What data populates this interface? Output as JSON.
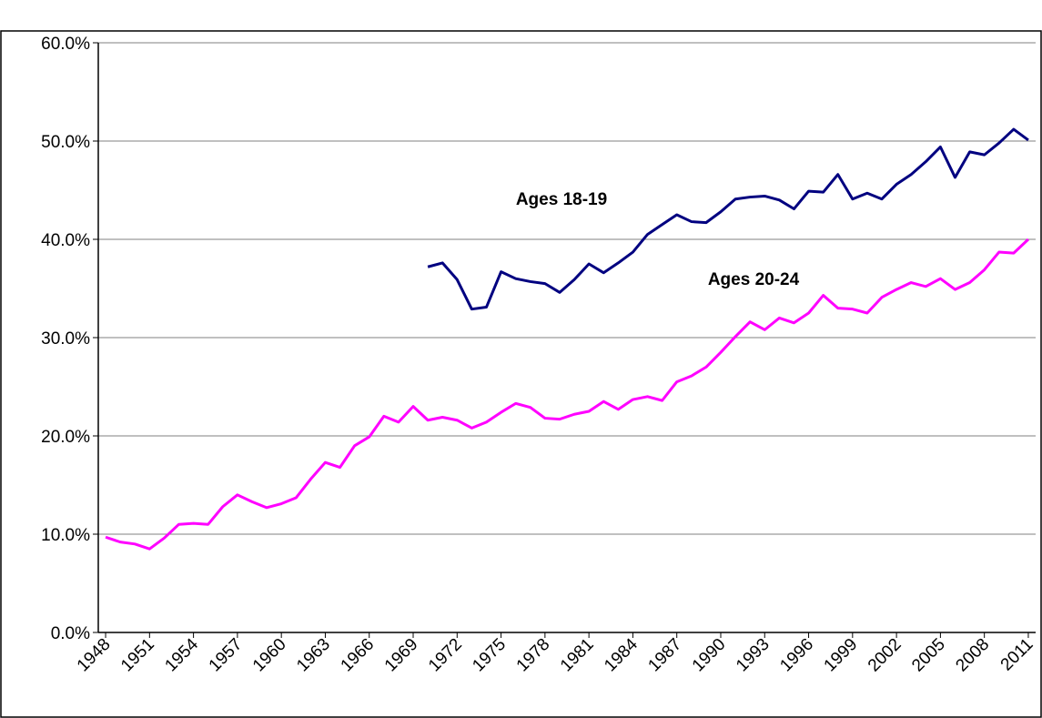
{
  "chart_data": {
    "type": "line",
    "x": [
      1948,
      1949,
      1950,
      1951,
      1952,
      1953,
      1954,
      1955,
      1956,
      1957,
      1958,
      1959,
      1960,
      1961,
      1962,
      1963,
      1964,
      1965,
      1966,
      1967,
      1968,
      1969,
      1970,
      1971,
      1972,
      1973,
      1974,
      1975,
      1976,
      1977,
      1978,
      1979,
      1980,
      1981,
      1982,
      1983,
      1984,
      1985,
      1986,
      1987,
      1988,
      1989,
      1990,
      1991,
      1992,
      1993,
      1994,
      1995,
      1996,
      1997,
      1998,
      1999,
      2000,
      2001,
      2002,
      2003,
      2004,
      2005,
      2006,
      2007,
      2008,
      2009,
      2010,
      2011
    ],
    "series": [
      {
        "name": "Ages 18-19",
        "color": "#000080",
        "values": [
          null,
          null,
          null,
          null,
          null,
          null,
          null,
          null,
          null,
          null,
          null,
          null,
          null,
          null,
          null,
          null,
          null,
          null,
          null,
          null,
          null,
          null,
          37.2,
          37.6,
          35.9,
          32.9,
          33.1,
          36.7,
          36.0,
          35.7,
          35.5,
          34.6,
          35.9,
          37.5,
          36.6,
          37.6,
          38.7,
          40.5,
          41.5,
          42.5,
          41.8,
          41.7,
          42.8,
          44.1,
          44.3,
          44.4,
          44.0,
          43.1,
          44.9,
          44.8,
          46.6,
          44.1,
          44.7,
          44.1,
          45.6,
          46.6,
          47.9,
          49.4,
          46.3,
          48.9,
          48.6,
          49.8,
          51.2,
          50.1
        ]
      },
      {
        "name": "Ages 20-24",
        "color": "#ff00ff",
        "values": [
          9.7,
          9.2,
          9.0,
          8.5,
          9.6,
          11.0,
          11.1,
          11.0,
          12.8,
          14.0,
          13.3,
          12.7,
          13.1,
          13.7,
          15.6,
          17.3,
          16.8,
          19.0,
          19.9,
          22.0,
          21.4,
          23.0,
          21.6,
          21.9,
          21.6,
          20.8,
          21.4,
          22.4,
          23.3,
          22.9,
          21.8,
          21.7,
          22.2,
          22.5,
          23.5,
          22.7,
          23.7,
          24.0,
          23.6,
          25.5,
          26.1,
          27.0,
          28.5,
          30.1,
          31.6,
          30.8,
          32.0,
          31.5,
          32.5,
          34.3,
          33.0,
          32.9,
          32.5,
          34.1,
          34.9,
          35.6,
          35.2,
          36.0,
          34.9,
          35.6,
          36.9,
          38.7,
          38.6,
          40.0
        ]
      }
    ],
    "xlim": [
      1947.5,
      2011.5
    ],
    "xticks": [
      1948,
      1951,
      1954,
      1957,
      1960,
      1963,
      1966,
      1969,
      1972,
      1975,
      1978,
      1981,
      1984,
      1987,
      1990,
      1993,
      1996,
      1999,
      2002,
      2005,
      2008,
      2011
    ],
    "ylim": [
      0,
      60
    ],
    "yticks": [
      {
        "value": 0,
        "label": "0.0%"
      },
      {
        "value": 10,
        "label": "10.0%"
      },
      {
        "value": 20,
        "label": "20.0%"
      },
      {
        "value": 30,
        "label": "30.0%"
      },
      {
        "value": 40,
        "label": "40.0%"
      },
      {
        "value": 50,
        "label": "50.0%"
      },
      {
        "value": 60,
        "label": "60.0%"
      }
    ],
    "grid": true
  }
}
